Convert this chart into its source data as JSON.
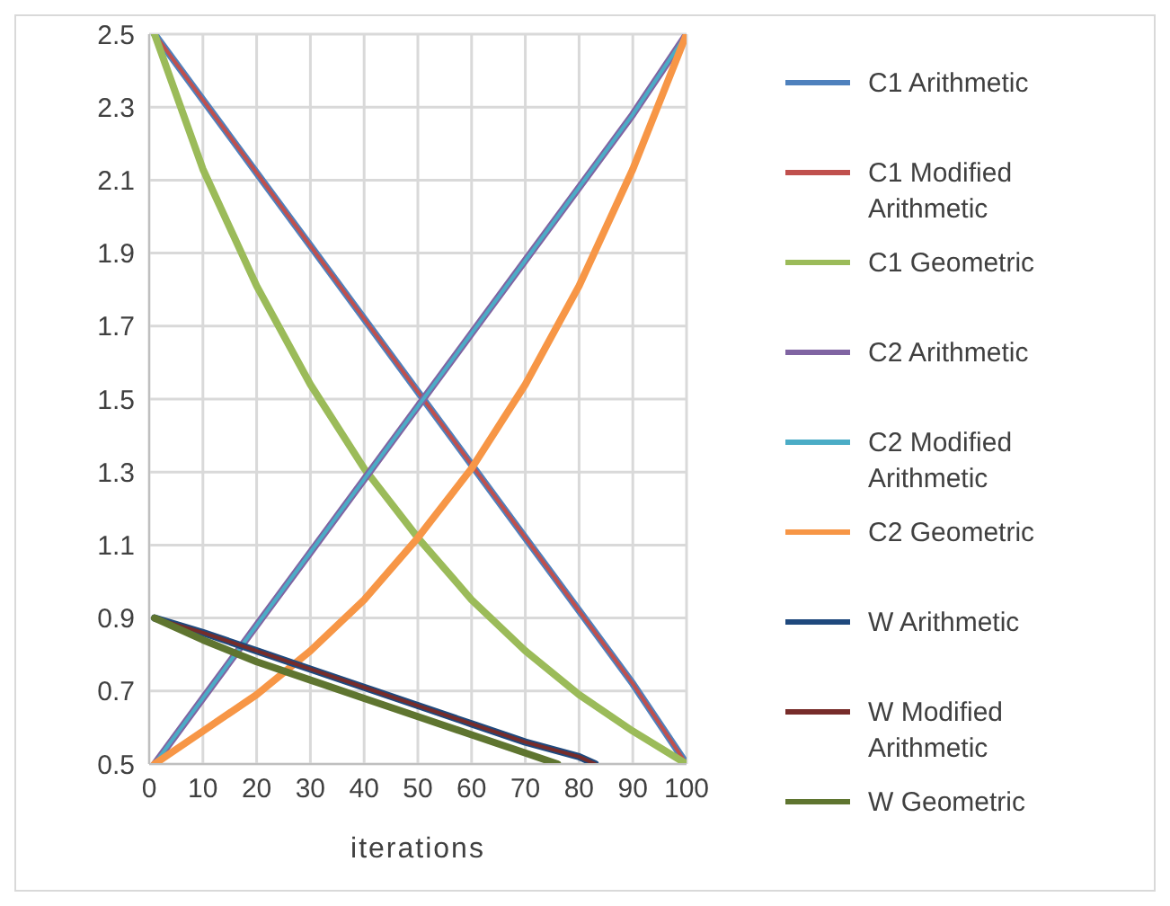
{
  "chart_data": {
    "type": "line",
    "xlabel": "iterations",
    "x": [
      1,
      10,
      20,
      30,
      40,
      50,
      60,
      70,
      80,
      90,
      100
    ],
    "series": [
      {
        "name": "C1 Arithmetic",
        "color": "#4f81bd",
        "values": [
          2.5,
          2.32,
          2.12,
          1.92,
          1.72,
          1.52,
          1.32,
          1.12,
          0.92,
          0.72,
          0.5
        ]
      },
      {
        "name": "C1 Modified Arithmetic",
        "color": "#c0504d",
        "values": [
          2.5,
          2.32,
          2.12,
          1.92,
          1.72,
          1.52,
          1.32,
          1.12,
          0.92,
          0.72,
          0.5
        ]
      },
      {
        "name": "C1 Geometric",
        "color": "#9bbb59",
        "values": [
          2.5,
          2.13,
          1.81,
          1.54,
          1.31,
          1.12,
          0.95,
          0.81,
          0.69,
          0.59,
          0.5
        ]
      },
      {
        "name": "C2 Arithmetic",
        "color": "#8064a2",
        "values": [
          0.5,
          0.68,
          0.88,
          1.08,
          1.28,
          1.48,
          1.68,
          1.88,
          2.08,
          2.28,
          2.5
        ]
      },
      {
        "name": "C2 Modified Arithmetic",
        "color": "#4bacc6",
        "values": [
          0.5,
          0.68,
          0.88,
          1.08,
          1.28,
          1.48,
          1.68,
          1.88,
          2.08,
          2.28,
          2.5
        ]
      },
      {
        "name": "C2 Geometric",
        "color": "#f79646",
        "values": [
          0.5,
          0.59,
          0.69,
          0.81,
          0.95,
          1.12,
          1.31,
          1.54,
          1.81,
          2.13,
          2.5
        ]
      },
      {
        "name": "W Arithmetic",
        "color": "#1f497d",
        "x": [
          1,
          10,
          20,
          30,
          40,
          50,
          60,
          70,
          80,
          83
        ],
        "values": [
          0.9,
          0.86,
          0.81,
          0.76,
          0.71,
          0.66,
          0.61,
          0.56,
          0.52,
          0.5
        ]
      },
      {
        "name": "W Modified Arithmetic",
        "color": "#772c2a",
        "x": [
          1,
          10,
          20,
          30,
          40,
          50,
          60,
          70,
          80,
          83
        ],
        "values": [
          0.9,
          0.86,
          0.81,
          0.76,
          0.71,
          0.66,
          0.61,
          0.56,
          0.52,
          0.5
        ]
      },
      {
        "name": "W Geometric",
        "color": "#5f7530",
        "x": [
          1,
          10,
          20,
          30,
          40,
          50,
          60,
          70,
          76
        ],
        "values": [
          0.9,
          0.84,
          0.78,
          0.73,
          0.68,
          0.63,
          0.58,
          0.53,
          0.5
        ]
      }
    ],
    "xlim": [
      0,
      100
    ],
    "xticks": [
      0,
      10,
      20,
      30,
      40,
      50,
      60,
      70,
      80,
      90,
      100
    ],
    "ylim": [
      0.5,
      2.5
    ],
    "yticks": [
      0.5,
      0.7,
      0.9,
      1.1,
      1.3,
      1.5,
      1.7,
      1.9,
      2.1,
      2.3,
      2.5
    ],
    "grid": true,
    "legend": "right",
    "marker": "none",
    "line_style": "solid"
  }
}
